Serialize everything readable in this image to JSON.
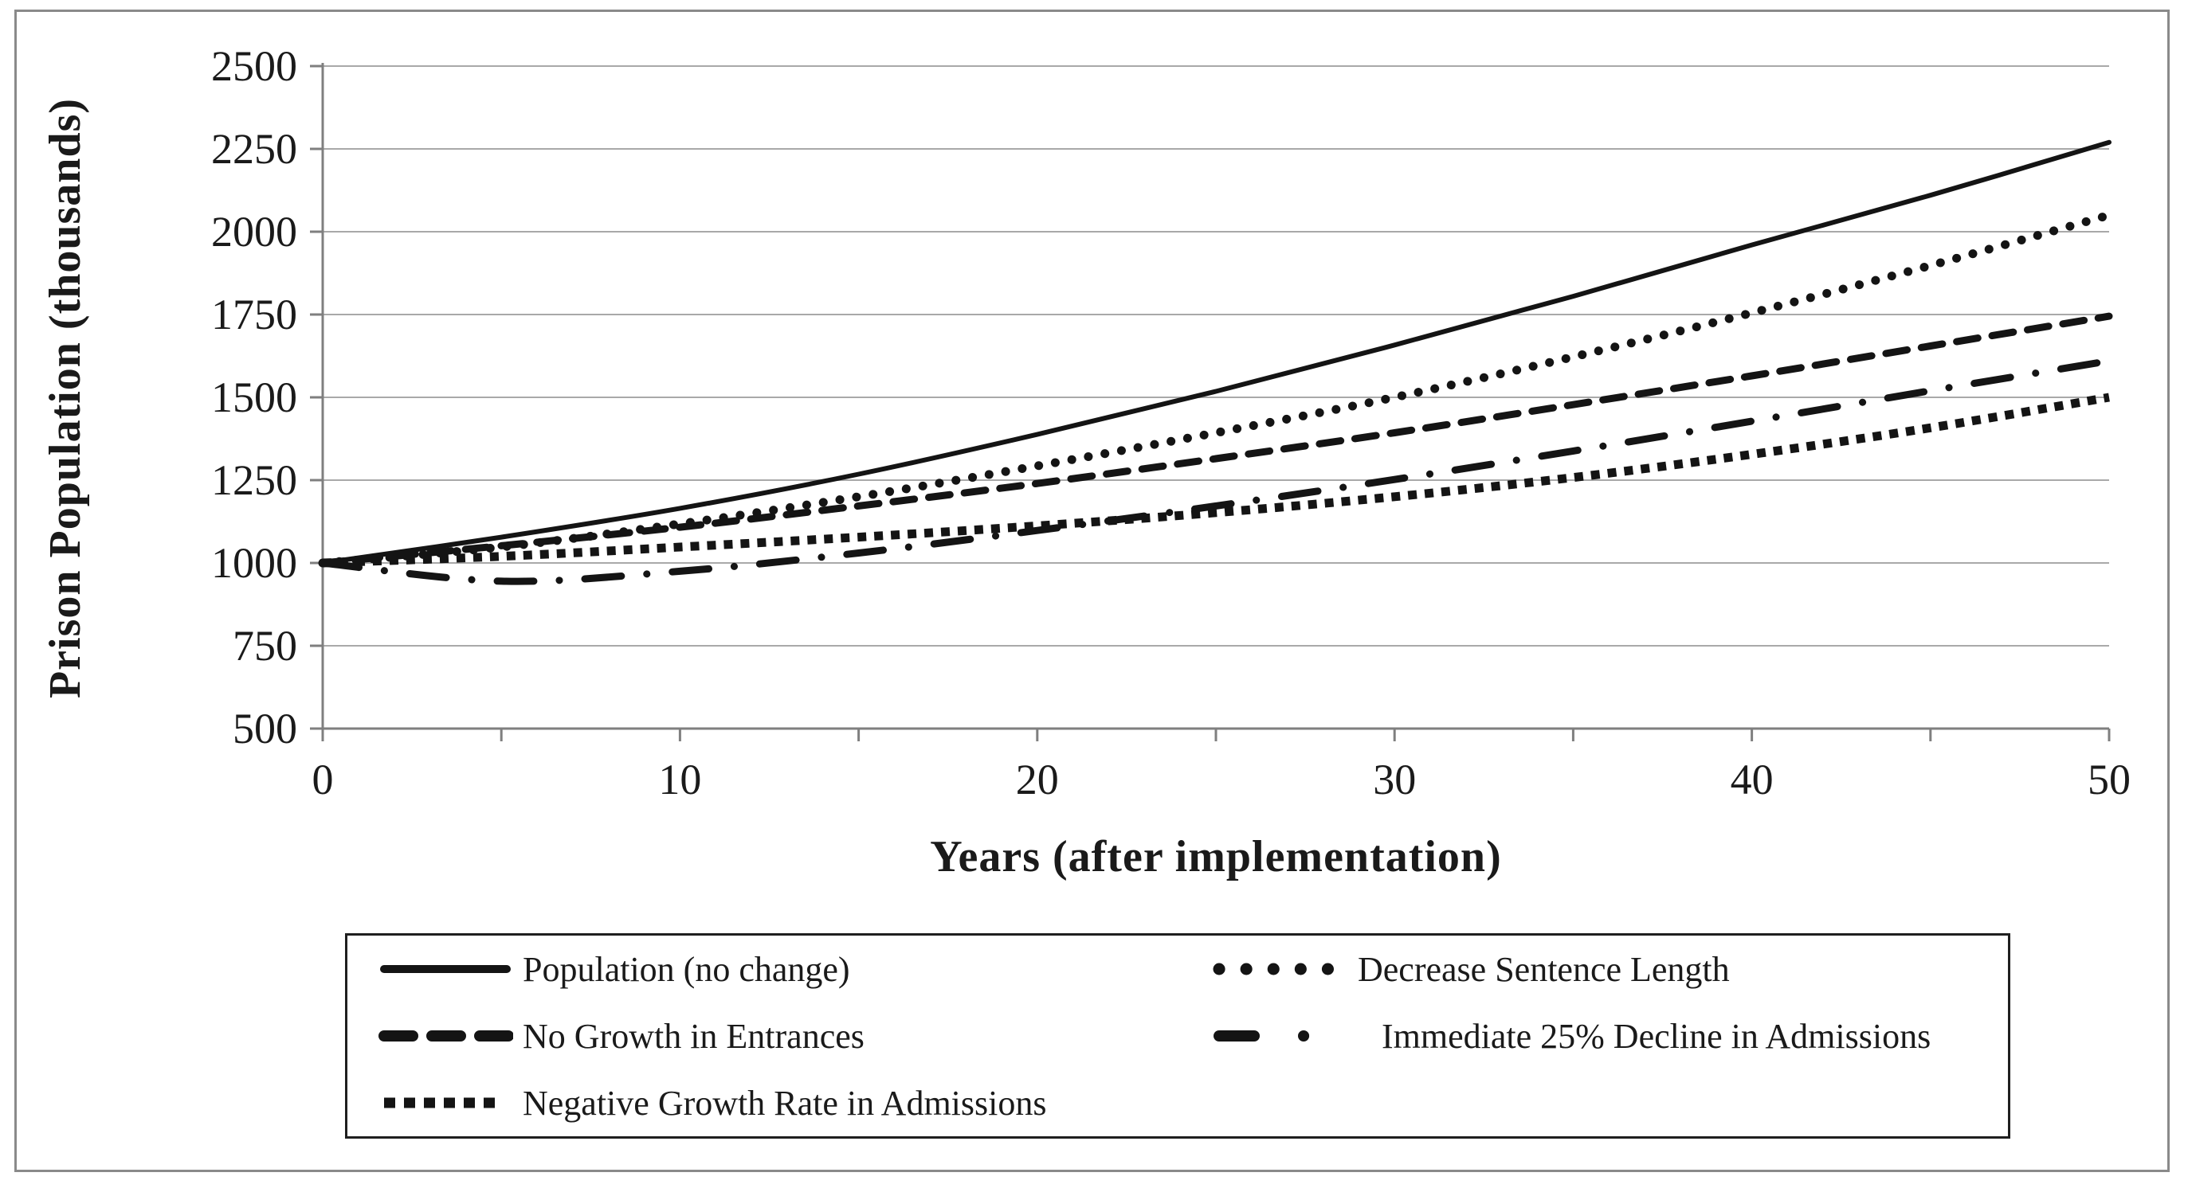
{
  "chart_data": {
    "type": "line",
    "title": "",
    "xlabel": "Years (after implementation)",
    "ylabel": "Prison Population (thousands)",
    "xlim": [
      0,
      50
    ],
    "ylim": [
      500,
      2500
    ],
    "x_tick_labels": [
      0,
      10,
      20,
      30,
      40,
      50
    ],
    "x_minor_tick_step": 5,
    "y_tick_labels": [
      2500,
      2250,
      2000,
      1750,
      1500,
      1250,
      1000,
      750,
      500
    ],
    "grid": "horizontal-only",
    "legend_position": "boxed, below x-axis title, two columns",
    "x": [
      0,
      5,
      10,
      15,
      20,
      25,
      30,
      35,
      40,
      45,
      50
    ],
    "series": [
      {
        "name": "Population (no change)",
        "style": "solid",
        "values": [
          1000,
          1078,
          1165,
          1268,
          1388,
          1518,
          1658,
          1805,
          1960,
          2110,
          2270
        ]
      },
      {
        "name": "Decrease Sentence Length",
        "style": "round-dot",
        "values": [
          1000,
          1048,
          1118,
          1200,
          1293,
          1393,
          1500,
          1622,
          1755,
          1898,
          2050
        ]
      },
      {
        "name": "No Growth in Entrances",
        "style": "dash",
        "values": [
          1000,
          1052,
          1108,
          1172,
          1240,
          1315,
          1393,
          1478,
          1565,
          1655,
          1745
        ]
      },
      {
        "name": "Immediate 25% Decline in Admissions",
        "style": "dash-dot",
        "values": [
          1000,
          945,
          975,
          1030,
          1098,
          1172,
          1252,
          1338,
          1428,
          1520,
          1610
        ]
      },
      {
        "name": "Negative Growth Rate in Admissions",
        "style": "square-dot",
        "values": [
          1000,
          1020,
          1048,
          1078,
          1112,
          1152,
          1200,
          1258,
          1328,
          1408,
          1500
        ]
      }
    ],
    "colors": {
      "series": "#141414",
      "grid": "#a9a9a9",
      "axis": "#7f7f7f",
      "text": "#1a1a1a",
      "frame": "#8a8a8a",
      "legend_border": "#1f1f1f",
      "background": "#ffffff"
    }
  }
}
